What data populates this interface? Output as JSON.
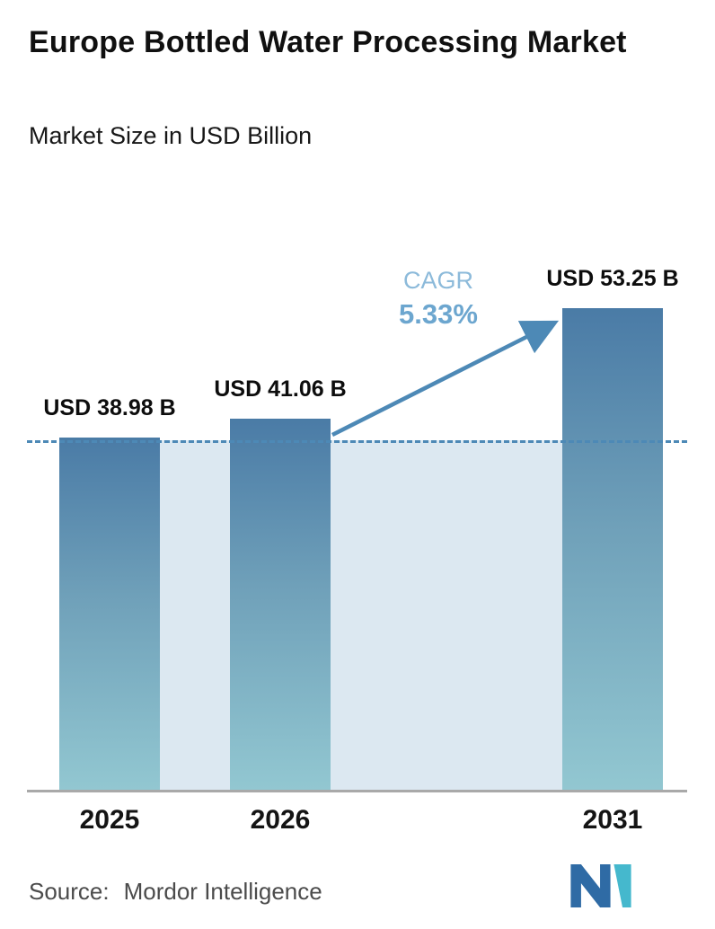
{
  "header": {
    "title": "Europe Bottled Water Processing Market",
    "subtitle": "Market Size in USD Billion"
  },
  "chart_data": {
    "type": "bar",
    "title": "Europe Bottled Water Processing Market",
    "subtitle": "Market Size in USD Billion",
    "categories": [
      "2025",
      "2026",
      "2031"
    ],
    "values": [
      38.98,
      41.06,
      53.25
    ],
    "value_labels": [
      "USD 38.98 B",
      "USD 41.06 B",
      "USD 53.25 B"
    ],
    "unit": "USD Billion",
    "ylim": [
      0,
      55
    ],
    "grid": false,
    "legend": false,
    "annotations": {
      "cagr_label": "CAGR",
      "cagr_value": "5.33%",
      "arrow_from_category": "2026",
      "arrow_to_category": "2031"
    },
    "reference_line": {
      "style": "dashed",
      "value": 38.98
    },
    "colors": {
      "bar_gradient_top": "#4a7ba6",
      "bar_gradient_bottom": "#92c7d1",
      "band_fill": "#dce8f1",
      "dashed_line": "#4d89b6",
      "arrow": "#4d89b6",
      "cagr_label_text": "#8cbada",
      "cagr_value_text": "#6ca6cf",
      "axis_line": "#a9a9a9"
    }
  },
  "footer": {
    "source_label": "Source:",
    "source_value": "Mordor Intelligence",
    "logo": "mordor-intelligence-logo"
  }
}
